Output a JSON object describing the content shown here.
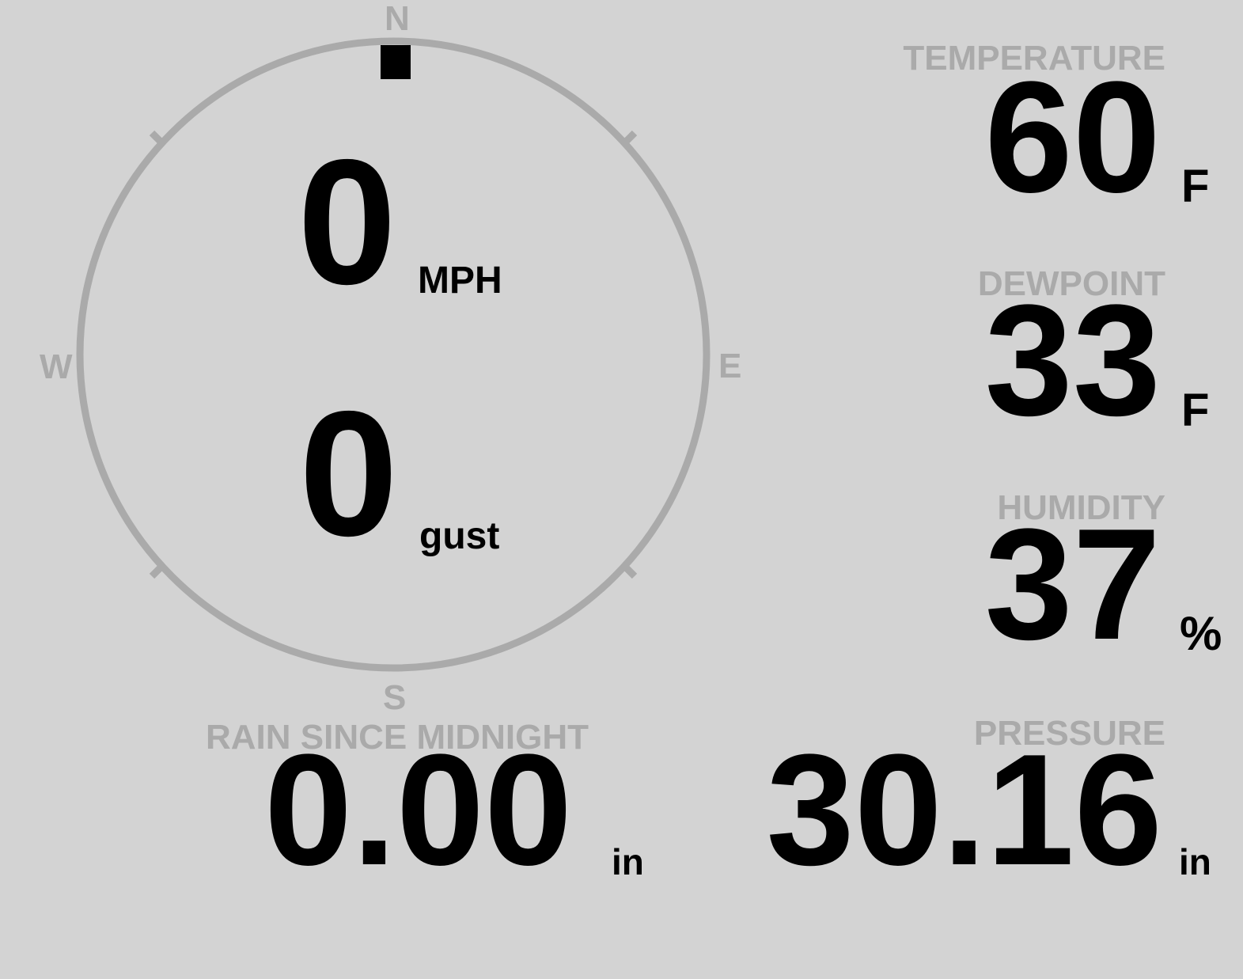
{
  "wind": {
    "compass": {
      "north": "N",
      "east": "E",
      "south": "S",
      "west": "W",
      "direction_degrees": 0
    },
    "speed": "0",
    "speed_unit": "MPH",
    "gust": "0",
    "gust_unit": "gust"
  },
  "temperature": {
    "label": "TEMPERATURE",
    "value": "60",
    "unit": "F"
  },
  "dewpoint": {
    "label": "DEWPOINT",
    "value": "33",
    "unit": "F"
  },
  "humidity": {
    "label": "HUMIDITY",
    "value": "37",
    "unit": "%"
  },
  "rain": {
    "label": "RAIN SINCE MIDNIGHT",
    "value": "0.00",
    "unit": "in"
  },
  "pressure": {
    "label": "PRESSURE",
    "value": "30.16",
    "unit": "in"
  },
  "colors": {
    "background": "#d3d3d3",
    "label": "#aaaaaa",
    "value": "#000000"
  }
}
